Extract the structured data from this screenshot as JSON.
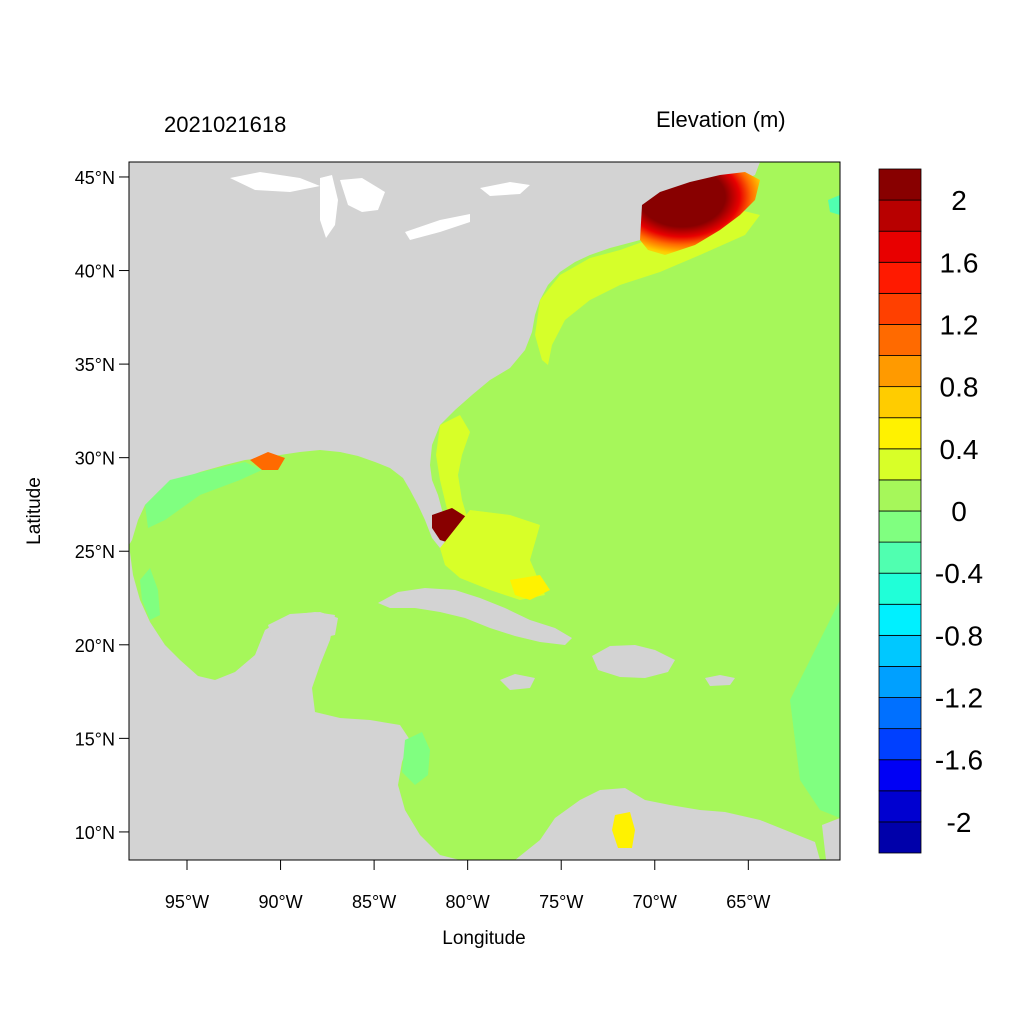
{
  "header": {
    "timestamp": "2021021618",
    "variable": "Elevation (m)"
  },
  "map": {
    "xlabel": "Longitude",
    "ylabel": "Latitude",
    "lon_range": [
      -98.1,
      -60.1
    ],
    "lat_range": [
      8.5,
      45.8
    ],
    "lon_ticks": [
      -95,
      -90,
      -85,
      -80,
      -75,
      -70,
      -65
    ],
    "lon_tick_labels": [
      "95°W",
      "90°W",
      "85°W",
      "80°W",
      "75°W",
      "70°W",
      "65°W"
    ],
    "lat_ticks": [
      10,
      15,
      20,
      25,
      30,
      35,
      40,
      45
    ],
    "lat_tick_labels": [
      "10°N",
      "15°N",
      "20°N",
      "25°N",
      "30°N",
      "35°N",
      "40°N",
      "45°N"
    ],
    "land_color": "#d3d3d3",
    "background_field_color": "#a6f75a"
  },
  "colorbar": {
    "colors": [
      "#0000aa",
      "#0000d0",
      "#0000f5",
      "#0040ff",
      "#0070ff",
      "#00a0ff",
      "#00c8ff",
      "#00f0ff",
      "#20ffd8",
      "#50ffb0",
      "#80ff80",
      "#a6f75a",
      "#d8ff28",
      "#fff200",
      "#ffcc00",
      "#ff9a00",
      "#ff6a00",
      "#ff4000",
      "#ff1a00",
      "#e80000",
      "#b80000",
      "#880000"
    ],
    "tick_values": [
      2,
      1.6,
      1.2,
      0.8,
      0.4,
      0,
      -0.4,
      -0.8,
      -1.2,
      -1.6,
      -2
    ],
    "tick_labels": [
      "2",
      "1.6",
      "1.2",
      "0.8",
      "0.4",
      "0",
      "-0.4",
      "-0.8",
      "-1.2",
      "-1.6",
      "-2"
    ]
  }
}
